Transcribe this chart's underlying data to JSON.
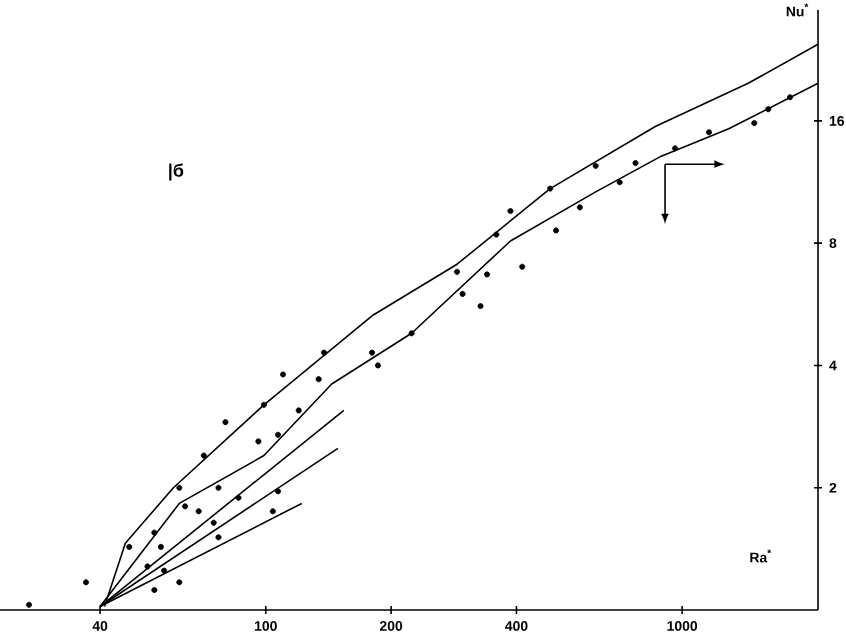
{
  "chart_data": {
    "type": "line",
    "xlabel": "Ra$^{*}$",
    "ylabel": "Nu$^{*}$",
    "log": "xy",
    "xlim": [
      23,
      2120
    ],
    "ylim": [
      1,
      30
    ],
    "xticks": [
      40,
      100,
      200,
      400,
      1000
    ],
    "yticks": [
      2,
      4,
      8,
      16
    ],
    "annotations": [
      "|б"
    ],
    "series": [
      {
        "color": "#000000",
        "marker": "none",
        "x": [
          41,
          46,
          60,
          99,
          180,
          288,
          482,
          862,
          1441,
          2120
        ],
        "values": [
          1.02,
          1.46,
          2.0,
          3.2,
          5.3,
          7.1,
          10.9,
          15.5,
          19.8,
          24.7
        ]
      },
      {
        "color": "#000000",
        "marker": "none",
        "x": [
          40,
          62,
          99,
          144,
          224,
          387,
          620,
          891,
          1294,
          2120
        ],
        "values": [
          1.02,
          1.83,
          2.4,
          3.6,
          4.8,
          8.1,
          10.7,
          13.1,
          15.3,
          19.8
        ]
      },
      {
        "color": "#000000",
        "marker": "none",
        "x": [
          40,
          154
        ],
        "values": [
          1.02,
          3.1
        ]
      },
      {
        "color": "#000000",
        "marker": "none",
        "x": [
          40,
          149
        ],
        "values": [
          1.02,
          2.5
        ]
      },
      {
        "color": "#000000",
        "marker": "none",
        "x": [
          40,
          122
        ],
        "values": [
          1.02,
          1.83
        ]
      },
      {
        "type": "scatter",
        "color": "#000000",
        "marker": "circle",
        "x": [
          47,
          54,
          62,
          71,
          80,
          99,
          110,
          138,
          180,
          224,
          186,
          134,
          120,
          107,
          96,
          77,
          69,
          64,
          56,
          52,
          57,
          75,
          77,
          104,
          107,
          86,
          62,
          54,
          37,
          27,
          288,
          358,
          387,
          482,
          620,
          962,
          1610,
          1816,
          1490,
          1160,
          773,
          708,
          568,
          498,
          413,
          340,
          297,
          328
        ],
        "values": [
          1.43,
          1.55,
          2.0,
          2.4,
          2.9,
          3.2,
          3.8,
          4.3,
          4.3,
          4.8,
          4.0,
          3.7,
          3.1,
          2.7,
          2.6,
          2.0,
          1.75,
          1.8,
          1.43,
          1.28,
          1.25,
          1.64,
          1.51,
          1.75,
          1.96,
          1.89,
          1.17,
          1.12,
          1.17,
          1.03,
          6.8,
          8.4,
          9.6,
          10.9,
          12.4,
          13.7,
          17.1,
          18.3,
          15.8,
          15.0,
          12.6,
          11.3,
          9.8,
          8.6,
          7.0,
          6.7,
          6.0,
          5.6
        ]
      }
    ]
  }
}
